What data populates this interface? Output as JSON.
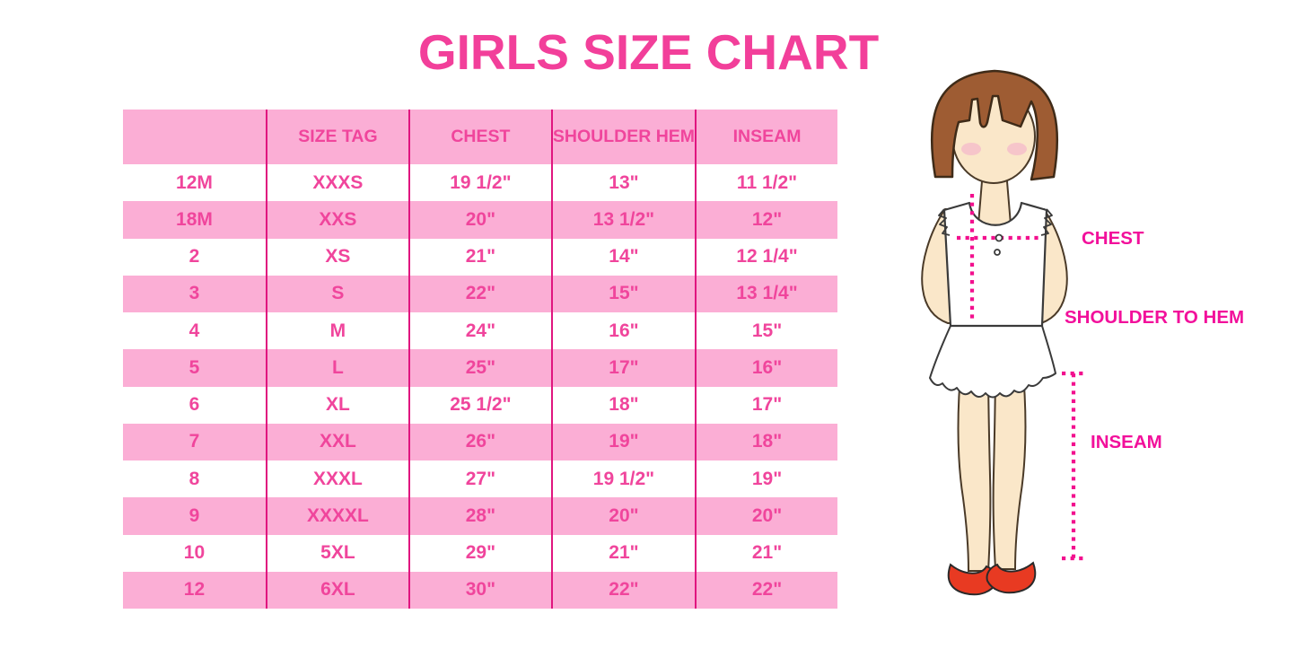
{
  "title": "GIRLS SIZE CHART",
  "size_table": {
    "columns": [
      "",
      "SIZE TAG",
      "CHEST",
      "SHOULDER HEM",
      "INSEAM"
    ],
    "rows": [
      [
        "12M",
        "XXXS",
        "19 1/2\"",
        "13\"",
        "11 1/2\""
      ],
      [
        "18M",
        "XXS",
        "20\"",
        "13 1/2\"",
        "12\""
      ],
      [
        "2",
        "XS",
        "21\"",
        "14\"",
        "12 1/4\""
      ],
      [
        "3",
        "S",
        "22\"",
        "15\"",
        "13 1/4\""
      ],
      [
        "4",
        "M",
        "24\"",
        "16\"",
        "15\""
      ],
      [
        "5",
        "L",
        "25\"",
        "17\"",
        "16\""
      ],
      [
        "6",
        "XL",
        "25 1/2\"",
        "18\"",
        "17\""
      ],
      [
        "7",
        "XXL",
        "26\"",
        "19\"",
        "18\""
      ],
      [
        "8",
        "XXXL",
        "27\"",
        "19 1/2\"",
        "19\""
      ],
      [
        "9",
        "XXXXL",
        "28\"",
        "20\"",
        "20\""
      ],
      [
        "10",
        "5XL",
        "29\"",
        "21\"",
        "21\""
      ],
      [
        "12",
        "6XL",
        "30\"",
        "22\"",
        "22\""
      ]
    ]
  },
  "figure": {
    "labels": {
      "chest": "CHEST",
      "shoulder_to_hem": "SHOULDER TO HEM",
      "inseam": "INSEAM"
    }
  },
  "colors": {
    "title_pink": "#F23F9A",
    "row_pink": "#FBAED5",
    "table_text_pink": "#F0459C",
    "column_line_magenta": "#E0157F",
    "measure_magenta": "#F2108E",
    "label_magenta": "#F2109B",
    "hair_brown": "#9E5C33",
    "skin": "#FAE7C9",
    "shoe_red": "#E83A22"
  }
}
